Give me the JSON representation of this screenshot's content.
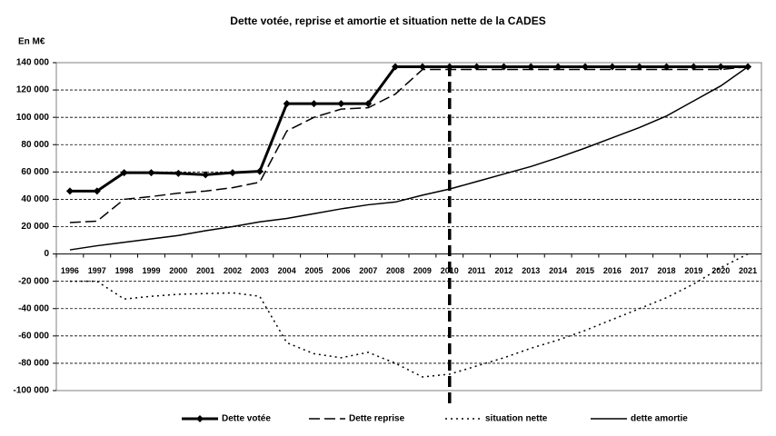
{
  "chart_data": {
    "type": "line",
    "title": "Dette votée, reprise et amortie et situation nette de la CADES",
    "y_label": "En M€",
    "categories": [
      "1996",
      "1997",
      "1998",
      "1999",
      "2000",
      "2001",
      "2002",
      "2003",
      "2004",
      "2005",
      "2006",
      "2007",
      "2008",
      "2009",
      "2010",
      "2011",
      "2012",
      "2013",
      "2014",
      "2015",
      "2016",
      "2017",
      "2018",
      "2019",
      "2020",
      "2021"
    ],
    "vline": "2010",
    "grid": true,
    "legend": "bottom",
    "ylim": [
      -100000,
      140000
    ],
    "yticks": [
      {
        "value": -100000,
        "label": "-100 000"
      },
      {
        "value": -80000,
        "label": "-80 000"
      },
      {
        "value": -60000,
        "label": "-60 000"
      },
      {
        "value": -40000,
        "label": "-40 000"
      },
      {
        "value": -20000,
        "label": "-20 000"
      },
      0,
      {
        "value": 20000,
        "label": "20 000"
      },
      {
        "value": 40000,
        "label": "40 000"
      },
      {
        "value": 60000,
        "label": "60 000"
      },
      {
        "value": 80000,
        "label": "80 000"
      },
      {
        "value": 100000,
        "label": "100 000"
      },
      {
        "value": 120000,
        "label": "120 000"
      },
      {
        "value": 140000,
        "label": "140 000"
      }
    ],
    "series": [
      {
        "name": "Dette votée",
        "color": "#000000",
        "style": "solid",
        "width": 3,
        "marker": "diamond",
        "values": [
          46000,
          46000,
          59500,
          59500,
          59000,
          58000,
          59500,
          60500,
          110000,
          110000,
          110000,
          110000,
          137000,
          137000,
          137000,
          137000,
          137000,
          137000,
          137000,
          137000,
          137000,
          137000,
          137000,
          137000,
          137000,
          137000
        ]
      },
      {
        "name": "Dette reprise",
        "color": "#000000",
        "style": "dashed",
        "width": 1.5,
        "values": [
          23000,
          24000,
          40000,
          42000,
          44500,
          46000,
          48500,
          52500,
          90000,
          100000,
          106000,
          107000,
          117000,
          135000,
          135000,
          135000,
          135000,
          135000,
          135000,
          135000,
          135000,
          135000,
          135000,
          135000,
          135000,
          137000
        ]
      },
      {
        "name": "situation nette",
        "color": "#000000",
        "style": "dotted",
        "width": 1.5,
        "values": [
          -20000,
          -20000,
          -33000,
          -31000,
          -29500,
          -29000,
          -28500,
          -31000,
          -65000,
          -73000,
          -76000,
          -72000,
          -80000,
          -90000,
          -88000,
          -82000,
          -76000,
          -69000,
          -63000,
          -56000,
          -48000,
          -40000,
          -32000,
          -22000,
          -10000,
          0
        ]
      },
      {
        "name": "dette amortie",
        "color": "#000000",
        "style": "solid",
        "width": 1.5,
        "values": [
          3000,
          6000,
          8500,
          11000,
          13500,
          17000,
          20000,
          23500,
          26000,
          29500,
          33000,
          36000,
          38000,
          43000,
          47500,
          53000,
          58500,
          64000,
          70500,
          77500,
          85000,
          92500,
          101000,
          112000,
          123000,
          137000
        ]
      }
    ]
  }
}
